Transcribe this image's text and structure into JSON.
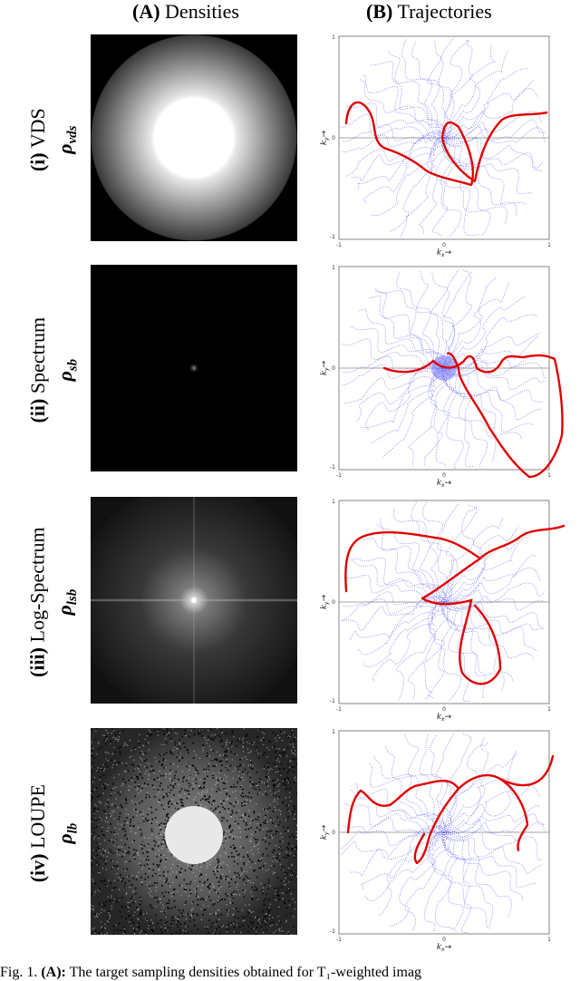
{
  "headers": {
    "a_tag": "(A)",
    "a_text": "Densities",
    "b_tag": "(B)",
    "b_text": "Trajectories"
  },
  "rows": [
    {
      "numeral": "(i)",
      "name": "VDS",
      "rho": "ρ",
      "sub": "vds",
      "density": "vds",
      "ticks": {
        "x_min": "-1",
        "x_mid": "0",
        "x_max": "1",
        "y_max": "1",
        "y_mid": "0",
        "y_min": "-1"
      }
    },
    {
      "numeral": "(ii)",
      "name": "Spectrum",
      "rho": "ρ",
      "sub": "sb",
      "density": "spectrum",
      "ticks": {
        "x_min": "-1",
        "x_mid": "0",
        "x_max": "1",
        "y_max": "1",
        "y_mid": "0",
        "y_min": "-1"
      }
    },
    {
      "numeral": "(iii)",
      "name": "Log-Spectrum",
      "rho": "ρ",
      "sub": "lsb",
      "density": "logspectrum",
      "ticks": {
        "x_min": "-1",
        "x_mid": "0",
        "x_max": "1",
        "y_max": "1",
        "y_mid": "0",
        "y_min": "-1"
      }
    },
    {
      "numeral": "(iv)",
      "name": "LOUPE",
      "rho": "ρ",
      "sub": "lb",
      "density": "loupe",
      "ticks": {
        "x_min": "-1",
        "x_mid": "0",
        "x_max": "1",
        "y_max": "1",
        "y_mid": "0",
        "y_min": "-1"
      }
    }
  ],
  "axis": {
    "kx": "k",
    "kx_sub": "x",
    "ky": "k",
    "ky_sub": "y",
    "arrow": "→"
  },
  "colors": {
    "highlight": "#e00000",
    "background_traj": "#5a5aff",
    "axis": "#555555"
  },
  "caption": {
    "prefix": "Fig. 1.",
    "bold": "(A):",
    "text": " The target sampling densities obtained for T₁-weighted imag"
  }
}
